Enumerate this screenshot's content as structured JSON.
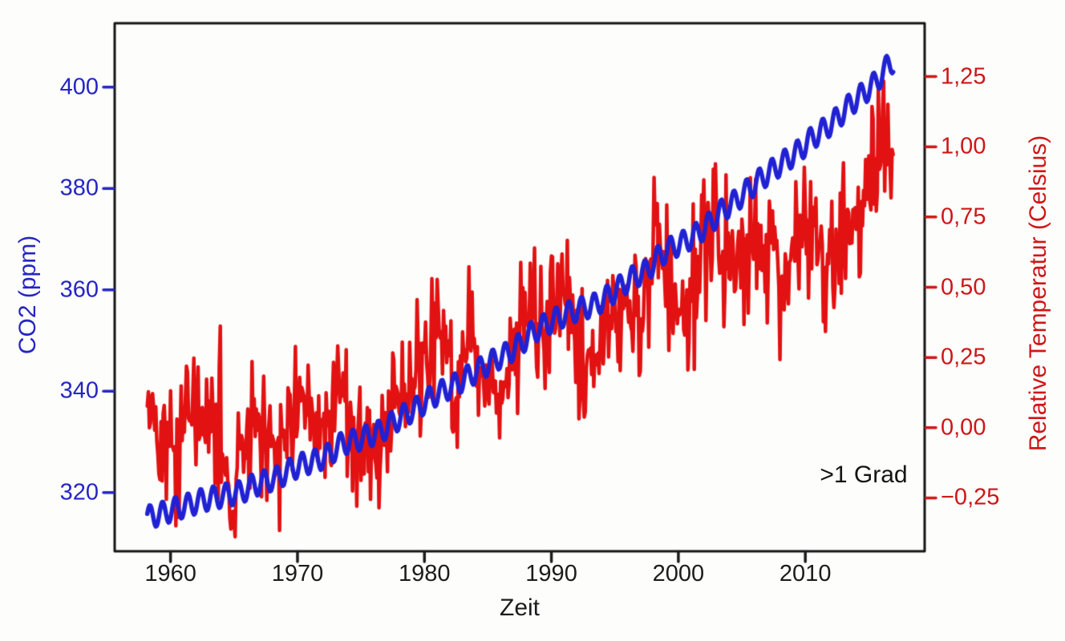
{
  "figure": {
    "background": "#fdfdfc",
    "annotation": ">1 Grad",
    "x_axis": {
      "label": "Zeit",
      "ticks": [
        "1960",
        "1970",
        "1980",
        "1990",
        "2000",
        "2010"
      ],
      "tick_values": [
        1960,
        1970,
        1980,
        1990,
        2000,
        2010
      ],
      "color": "#1c1c1c"
    },
    "left_axis": {
      "label": "CO2 (ppm)",
      "ticks": [
        "400",
        "380",
        "360",
        "340",
        "320"
      ],
      "tick_values": [
        400,
        380,
        360,
        340,
        320
      ],
      "text_color": "#2525c4"
    },
    "right_axis": {
      "label": "Relative Temperatur (Celsius)",
      "ticks": [
        "1,25",
        "1,00",
        "0,75",
        "0,50",
        "0,25",
        "0,00",
        "−0,25"
      ],
      "tick_values": [
        1.25,
        1.0,
        0.75,
        0.5,
        0.25,
        0.0,
        -0.25
      ],
      "text_color": "#cf1616"
    },
    "spine_color": "#141414"
  },
  "chart_data": {
    "type": "line",
    "title": "",
    "xlabel": "Zeit",
    "ylabel_left": "CO2 (ppm)",
    "ylabel_right": "Relative Temperatur (Celsius)",
    "xlim": [
      1955.6,
      2019.4
    ],
    "ylim_left": [
      308.4,
      412.6
    ],
    "ylim_right": [
      -0.44,
      1.44
    ],
    "grid": false,
    "legend": "none",
    "years": [
      1958,
      1959,
      1960,
      1961,
      1962,
      1963,
      1964,
      1965,
      1966,
      1967,
      1968,
      1969,
      1970,
      1971,
      1972,
      1973,
      1974,
      1975,
      1976,
      1977,
      1978,
      1979,
      1980,
      1981,
      1982,
      1983,
      1984,
      1985,
      1986,
      1987,
      1988,
      1989,
      1990,
      1991,
      1992,
      1993,
      1994,
      1995,
      1996,
      1997,
      1998,
      1999,
      2000,
      2001,
      2002,
      2003,
      2004,
      2005,
      2006,
      2007,
      2008,
      2009,
      2010,
      2011,
      2012,
      2013,
      2014,
      2015,
      2016,
      2017
    ],
    "series": [
      {
        "name": "CO2 (ppm)",
        "axis": "left",
        "color": "#2121d4",
        "line_width": 5.5,
        "sampling": "monthly",
        "start_year": 1958.17,
        "end_year": 2017.0,
        "annual_values": [
          315.3,
          316.0,
          316.9,
          317.6,
          318.5,
          319.0,
          319.6,
          320.0,
          321.4,
          322.2,
          323.0,
          324.6,
          325.7,
          326.3,
          327.5,
          329.7,
          330.2,
          331.1,
          332.0,
          333.8,
          335.4,
          336.8,
          338.8,
          340.1,
          341.4,
          343.0,
          344.6,
          346.1,
          347.4,
          349.2,
          351.6,
          353.1,
          354.4,
          355.6,
          356.4,
          357.1,
          358.8,
          360.8,
          362.6,
          363.7,
          366.7,
          368.4,
          369.5,
          371.1,
          373.2,
          375.8,
          377.5,
          379.8,
          381.9,
          383.8,
          385.6,
          387.4,
          389.9,
          391.7,
          393.8,
          396.5,
          398.6,
          400.8,
          404.2,
          406.5
        ],
        "seasonal_amplitude_ppm": 2.3,
        "seasonal_peak_month_fraction": 0.37
      },
      {
        "name": "Relative Temperatur (Celsius)",
        "axis": "right",
        "color": "#e21212",
        "line_width": 4.5,
        "sampling": "monthly",
        "start_year": 1958.17,
        "end_year": 2017.0,
        "annual_values": [
          0.05,
          0.02,
          -0.03,
          0.05,
          0.02,
          0.05,
          -0.18,
          -0.12,
          -0.05,
          0.0,
          -0.06,
          0.06,
          0.04,
          -0.07,
          0.02,
          0.18,
          -0.08,
          0.0,
          -0.1,
          0.16,
          0.08,
          0.15,
          0.28,
          0.34,
          0.15,
          0.32,
          0.15,
          0.13,
          0.19,
          0.34,
          0.42,
          0.3,
          0.46,
          0.42,
          0.23,
          0.24,
          0.32,
          0.46,
          0.35,
          0.48,
          0.64,
          0.42,
          0.43,
          0.55,
          0.64,
          0.63,
          0.55,
          0.69,
          0.65,
          0.67,
          0.55,
          0.66,
          0.73,
          0.61,
          0.65,
          0.69,
          0.76,
          0.92,
          0.95,
          0.8
        ],
        "monthly_noise": {
          "uniform_amp": 0.085,
          "cubic_amp": 0.26,
          "seed": 42
        },
        "events": [
          {
            "year": 1960.4,
            "amp": -0.28,
            "width": 0.06
          },
          {
            "year": 1963.9,
            "amp": 0.18,
            "width": 0.05
          },
          {
            "year": 1964.8,
            "amp": -0.16,
            "width": 0.18
          },
          {
            "year": 1972.9,
            "amp": 0.2,
            "width": 0.07
          },
          {
            "year": 1976.4,
            "amp": -0.15,
            "width": 0.1
          },
          {
            "year": 1981.0,
            "amp": 0.15,
            "width": 0.08
          },
          {
            "year": 1990.0,
            "amp": 0.2,
            "width": 0.07
          },
          {
            "year": 1992.6,
            "amp": -0.15,
            "width": 0.12
          },
          {
            "year": 1995.3,
            "amp": 0.18,
            "width": 0.05
          },
          {
            "year": 1998.1,
            "amp": 0.2,
            "width": 0.09
          },
          {
            "year": 2002.0,
            "amp": 0.2,
            "width": 0.07
          },
          {
            "year": 2008.0,
            "amp": -0.26,
            "width": 0.07
          },
          {
            "year": 2016.12,
            "amp": 0.4,
            "width": 0.1
          }
        ],
        "value_clamp": [
          -0.42,
          1.4
        ],
        "peak_annotation": ">1 Grad"
      }
    ]
  }
}
